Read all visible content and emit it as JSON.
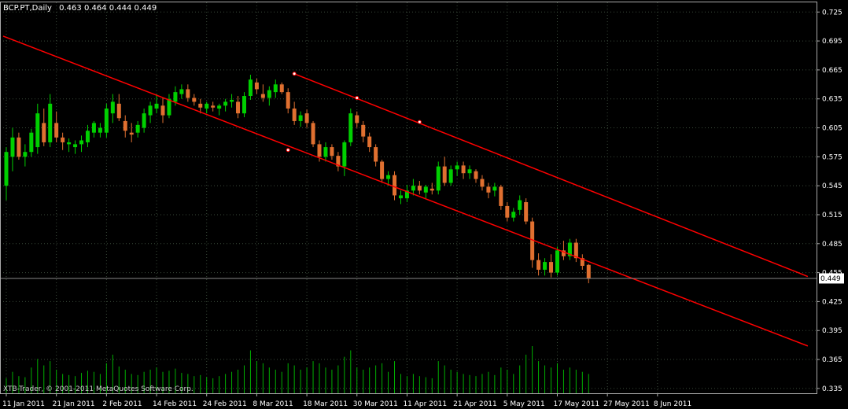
{
  "chart_data": {
    "type": "candlestick",
    "header": {
      "symbol_timeframe": "BCP.PT,Daily",
      "ohlc_text": "0.463 0.464 0.444 0.449"
    },
    "watermark": "XTB-Trader, © 2001-2011 MetaQuotes Software Corp.",
    "current_price_label": "0.449",
    "current_price": 0.449,
    "y_range": [
      0.33,
      0.735
    ],
    "y_ticks": [
      0.725,
      0.695,
      0.665,
      0.635,
      0.605,
      0.575,
      0.545,
      0.515,
      0.485,
      0.455,
      0.425,
      0.395,
      0.365,
      0.335
    ],
    "y_tick_labels": [
      "0.725",
      "0.695",
      "0.665",
      "0.635",
      "0.605",
      "0.575",
      "0.545",
      "0.515",
      "0.485",
      "0.455",
      "0.425",
      "0.395",
      "0.365",
      "0.335"
    ],
    "x_labels": [
      {
        "label": "11 Jan 2011",
        "bar": 0
      },
      {
        "label": "21 Jan 2011",
        "bar": 8
      },
      {
        "label": "2 Feb 2011",
        "bar": 16
      },
      {
        "label": "14 Feb 2011",
        "bar": 24
      },
      {
        "label": "24 Feb 2011",
        "bar": 32
      },
      {
        "label": "8 Mar 2011",
        "bar": 40
      },
      {
        "label": "18 Mar 2011",
        "bar": 48
      },
      {
        "label": "30 Mar 2011",
        "bar": 56
      },
      {
        "label": "11 Apr 2011",
        "bar": 64
      },
      {
        "label": "21 Apr 2011",
        "bar": 72
      },
      {
        "label": "5 May 2011",
        "bar": 80
      },
      {
        "label": "17 May 2011",
        "bar": 88
      },
      {
        "label": "27 May 2011",
        "bar": 96
      },
      {
        "label": "8 Jun 2011",
        "bar": 104
      }
    ],
    "bars": [
      {
        "o": 0.545,
        "h": 0.585,
        "l": 0.53,
        "c": 0.58,
        "v": 14
      },
      {
        "o": 0.575,
        "h": 0.605,
        "l": 0.56,
        "c": 0.595,
        "v": 20
      },
      {
        "o": 0.595,
        "h": 0.6,
        "l": 0.572,
        "c": 0.575,
        "v": 16
      },
      {
        "o": 0.575,
        "h": 0.588,
        "l": 0.565,
        "c": 0.58,
        "v": 15
      },
      {
        "o": 0.58,
        "h": 0.604,
        "l": 0.575,
        "c": 0.6,
        "v": 24
      },
      {
        "o": 0.585,
        "h": 0.63,
        "l": 0.578,
        "c": 0.62,
        "v": 32
      },
      {
        "o": 0.61,
        "h": 0.625,
        "l": 0.586,
        "c": 0.59,
        "v": 26
      },
      {
        "o": 0.59,
        "h": 0.64,
        "l": 0.585,
        "c": 0.63,
        "v": 30
      },
      {
        "o": 0.61,
        "h": 0.622,
        "l": 0.59,
        "c": 0.595,
        "v": 22
      },
      {
        "o": 0.595,
        "h": 0.6,
        "l": 0.582,
        "c": 0.59,
        "v": 18
      },
      {
        "o": 0.588,
        "h": 0.594,
        "l": 0.58,
        "c": 0.59,
        "v": 17
      },
      {
        "o": 0.585,
        "h": 0.592,
        "l": 0.578,
        "c": 0.588,
        "v": 16
      },
      {
        "o": 0.588,
        "h": 0.597,
        "l": 0.58,
        "c": 0.592,
        "v": 19
      },
      {
        "o": 0.59,
        "h": 0.608,
        "l": 0.585,
        "c": 0.602,
        "v": 21
      },
      {
        "o": 0.6,
        "h": 0.612,
        "l": 0.595,
        "c": 0.61,
        "v": 20
      },
      {
        "o": 0.6,
        "h": 0.61,
        "l": 0.595,
        "c": 0.605,
        "v": 18
      },
      {
        "o": 0.6,
        "h": 0.63,
        "l": 0.595,
        "c": 0.625,
        "v": 28
      },
      {
        "o": 0.62,
        "h": 0.64,
        "l": 0.61,
        "c": 0.632,
        "v": 36
      },
      {
        "o": 0.63,
        "h": 0.64,
        "l": 0.612,
        "c": 0.615,
        "v": 25
      },
      {
        "o": 0.612,
        "h": 0.618,
        "l": 0.595,
        "c": 0.602,
        "v": 22
      },
      {
        "o": 0.6,
        "h": 0.61,
        "l": 0.59,
        "c": 0.598,
        "v": 18
      },
      {
        "o": 0.6,
        "h": 0.612,
        "l": 0.595,
        "c": 0.608,
        "v": 17
      },
      {
        "o": 0.605,
        "h": 0.625,
        "l": 0.6,
        "c": 0.62,
        "v": 20
      },
      {
        "o": 0.618,
        "h": 0.632,
        "l": 0.61,
        "c": 0.628,
        "v": 22
      },
      {
        "o": 0.625,
        "h": 0.64,
        "l": 0.62,
        "c": 0.63,
        "v": 24
      },
      {
        "o": 0.628,
        "h": 0.636,
        "l": 0.61,
        "c": 0.618,
        "v": 20
      },
      {
        "o": 0.618,
        "h": 0.64,
        "l": 0.615,
        "c": 0.635,
        "v": 21
      },
      {
        "o": 0.632,
        "h": 0.648,
        "l": 0.628,
        "c": 0.642,
        "v": 23
      },
      {
        "o": 0.64,
        "h": 0.65,
        "l": 0.635,
        "c": 0.645,
        "v": 19
      },
      {
        "o": 0.645,
        "h": 0.65,
        "l": 0.632,
        "c": 0.636,
        "v": 18
      },
      {
        "o": 0.636,
        "h": 0.64,
        "l": 0.628,
        "c": 0.632,
        "v": 16
      },
      {
        "o": 0.63,
        "h": 0.635,
        "l": 0.62,
        "c": 0.626,
        "v": 17
      },
      {
        "o": 0.625,
        "h": 0.632,
        "l": 0.62,
        "c": 0.63,
        "v": 15
      },
      {
        "o": 0.628,
        "h": 0.632,
        "l": 0.622,
        "c": 0.626,
        "v": 14
      },
      {
        "o": 0.625,
        "h": 0.63,
        "l": 0.618,
        "c": 0.628,
        "v": 16
      },
      {
        "o": 0.628,
        "h": 0.635,
        "l": 0.622,
        "c": 0.632,
        "v": 18
      },
      {
        "o": 0.632,
        "h": 0.64,
        "l": 0.626,
        "c": 0.634,
        "v": 20
      },
      {
        "o": 0.632,
        "h": 0.638,
        "l": 0.615,
        "c": 0.62,
        "v": 22
      },
      {
        "o": 0.62,
        "h": 0.642,
        "l": 0.616,
        "c": 0.638,
        "v": 26
      },
      {
        "o": 0.638,
        "h": 0.66,
        "l": 0.634,
        "c": 0.655,
        "v": 40
      },
      {
        "o": 0.652,
        "h": 0.656,
        "l": 0.64,
        "c": 0.645,
        "v": 30
      },
      {
        "o": 0.64,
        "h": 0.65,
        "l": 0.632,
        "c": 0.636,
        "v": 28
      },
      {
        "o": 0.636,
        "h": 0.648,
        "l": 0.628,
        "c": 0.644,
        "v": 24
      },
      {
        "o": 0.642,
        "h": 0.655,
        "l": 0.636,
        "c": 0.65,
        "v": 22
      },
      {
        "o": 0.65,
        "h": 0.652,
        "l": 0.64,
        "c": 0.642,
        "v": 20
      },
      {
        "o": 0.642,
        "h": 0.646,
        "l": 0.62,
        "c": 0.625,
        "v": 28
      },
      {
        "o": 0.625,
        "h": 0.632,
        "l": 0.608,
        "c": 0.612,
        "v": 26
      },
      {
        "o": 0.612,
        "h": 0.622,
        "l": 0.606,
        "c": 0.618,
        "v": 22
      },
      {
        "o": 0.62,
        "h": 0.624,
        "l": 0.605,
        "c": 0.61,
        "v": 24
      },
      {
        "o": 0.61,
        "h": 0.612,
        "l": 0.585,
        "c": 0.588,
        "v": 30
      },
      {
        "o": 0.588,
        "h": 0.592,
        "l": 0.57,
        "c": 0.575,
        "v": 28
      },
      {
        "o": 0.575,
        "h": 0.59,
        "l": 0.57,
        "c": 0.585,
        "v": 24
      },
      {
        "o": 0.585,
        "h": 0.588,
        "l": 0.572,
        "c": 0.576,
        "v": 22
      },
      {
        "o": 0.576,
        "h": 0.58,
        "l": 0.56,
        "c": 0.565,
        "v": 26
      },
      {
        "o": 0.565,
        "h": 0.592,
        "l": 0.555,
        "c": 0.59,
        "v": 34
      },
      {
        "o": 0.59,
        "h": 0.625,
        "l": 0.586,
        "c": 0.62,
        "v": 40
      },
      {
        "o": 0.618,
        "h": 0.622,
        "l": 0.605,
        "c": 0.61,
        "v": 24
      },
      {
        "o": 0.608,
        "h": 0.612,
        "l": 0.59,
        "c": 0.596,
        "v": 22
      },
      {
        "o": 0.596,
        "h": 0.6,
        "l": 0.58,
        "c": 0.585,
        "v": 24
      },
      {
        "o": 0.585,
        "h": 0.588,
        "l": 0.565,
        "c": 0.57,
        "v": 26
      },
      {
        "o": 0.57,
        "h": 0.572,
        "l": 0.548,
        "c": 0.552,
        "v": 28
      },
      {
        "o": 0.552,
        "h": 0.56,
        "l": 0.545,
        "c": 0.556,
        "v": 20
      },
      {
        "o": 0.556,
        "h": 0.56,
        "l": 0.53,
        "c": 0.535,
        "v": 30
      },
      {
        "o": 0.532,
        "h": 0.54,
        "l": 0.526,
        "c": 0.535,
        "v": 18
      },
      {
        "o": 0.532,
        "h": 0.546,
        "l": 0.528,
        "c": 0.54,
        "v": 16
      },
      {
        "o": 0.54,
        "h": 0.552,
        "l": 0.535,
        "c": 0.545,
        "v": 18
      },
      {
        "o": 0.545,
        "h": 0.55,
        "l": 0.536,
        "c": 0.54,
        "v": 16
      },
      {
        "o": 0.538,
        "h": 0.546,
        "l": 0.532,
        "c": 0.544,
        "v": 15
      },
      {
        "o": 0.542,
        "h": 0.548,
        "l": 0.536,
        "c": 0.54,
        "v": 14
      },
      {
        "o": 0.54,
        "h": 0.57,
        "l": 0.536,
        "c": 0.565,
        "v": 30
      },
      {
        "o": 0.565,
        "h": 0.575,
        "l": 0.545,
        "c": 0.548,
        "v": 26
      },
      {
        "o": 0.548,
        "h": 0.566,
        "l": 0.545,
        "c": 0.562,
        "v": 22
      },
      {
        "o": 0.562,
        "h": 0.57,
        "l": 0.555,
        "c": 0.566,
        "v": 20
      },
      {
        "o": 0.566,
        "h": 0.57,
        "l": 0.552,
        "c": 0.558,
        "v": 18
      },
      {
        "o": 0.558,
        "h": 0.566,
        "l": 0.552,
        "c": 0.562,
        "v": 17
      },
      {
        "o": 0.56,
        "h": 0.562,
        "l": 0.548,
        "c": 0.552,
        "v": 16
      },
      {
        "o": 0.552,
        "h": 0.556,
        "l": 0.54,
        "c": 0.544,
        "v": 18
      },
      {
        "o": 0.544,
        "h": 0.548,
        "l": 0.532,
        "c": 0.538,
        "v": 20
      },
      {
        "o": 0.54,
        "h": 0.548,
        "l": 0.534,
        "c": 0.544,
        "v": 17
      },
      {
        "o": 0.544,
        "h": 0.546,
        "l": 0.52,
        "c": 0.524,
        "v": 24
      },
      {
        "o": 0.524,
        "h": 0.528,
        "l": 0.508,
        "c": 0.512,
        "v": 22
      },
      {
        "o": 0.512,
        "h": 0.522,
        "l": 0.508,
        "c": 0.518,
        "v": 18
      },
      {
        "o": 0.52,
        "h": 0.535,
        "l": 0.515,
        "c": 0.53,
        "v": 26
      },
      {
        "o": 0.528,
        "h": 0.532,
        "l": 0.505,
        "c": 0.508,
        "v": 36
      },
      {
        "o": 0.508,
        "h": 0.512,
        "l": 0.46,
        "c": 0.468,
        "v": 44
      },
      {
        "o": 0.468,
        "h": 0.475,
        "l": 0.452,
        "c": 0.458,
        "v": 30
      },
      {
        "o": 0.458,
        "h": 0.47,
        "l": 0.452,
        "c": 0.466,
        "v": 26
      },
      {
        "o": 0.466,
        "h": 0.474,
        "l": 0.45,
        "c": 0.455,
        "v": 24
      },
      {
        "o": 0.455,
        "h": 0.482,
        "l": 0.452,
        "c": 0.478,
        "v": 28
      },
      {
        "o": 0.478,
        "h": 0.488,
        "l": 0.468,
        "c": 0.472,
        "v": 22
      },
      {
        "o": 0.472,
        "h": 0.49,
        "l": 0.468,
        "c": 0.486,
        "v": 24
      },
      {
        "o": 0.486,
        "h": 0.49,
        "l": 0.466,
        "c": 0.47,
        "v": 22
      },
      {
        "o": 0.47,
        "h": 0.474,
        "l": 0.458,
        "c": 0.462,
        "v": 20
      },
      {
        "o": 0.463,
        "h": 0.464,
        "l": 0.444,
        "c": 0.449,
        "v": 18
      }
    ],
    "channel_lines": [
      {
        "name": "lower",
        "p1": {
          "bar": -0.5,
          "y": 0.7
        },
        "p2": {
          "bar": 128,
          "y": 0.379
        }
      },
      {
        "name": "upper",
        "p1": {
          "bar": 46,
          "y": 0.661
        },
        "p2": {
          "bar": 128,
          "y": 0.451
        }
      }
    ],
    "channel_points": [
      {
        "bar": 46,
        "y": 0.661
      },
      {
        "bar": 56,
        "y": 0.636
      },
      {
        "bar": 66,
        "y": 0.611
      },
      {
        "bar": 45,
        "y": 0.582
      }
    ],
    "colors": {
      "background": "#000000",
      "bull": "#00d000",
      "bear": "#e07030",
      "volume": "#00b000",
      "channel": "#ff0000",
      "grid": "#3a4a3a",
      "axis_text": "#ffffff",
      "price_tag_bg": "#ffffff",
      "price_tag_text": "#000000"
    }
  }
}
